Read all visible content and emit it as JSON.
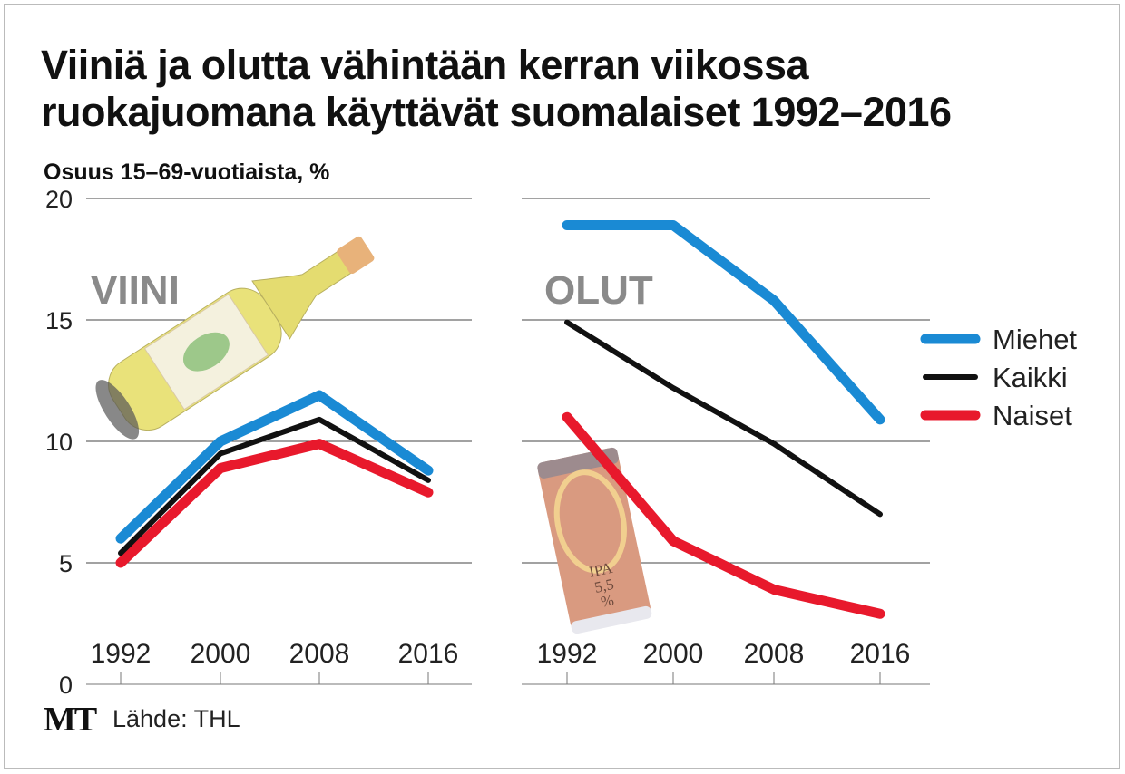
{
  "title_line1": "Viiniä ja olutta vähintään kerran viikossa",
  "title_line2": "ruokajuomana käyttävät suomalaiset 1992–2016",
  "subtitle": "Osuus 15–69-vuotiaista, %",
  "source": "Lähde: THL",
  "logo": "MT",
  "colors": {
    "Miehet": "#1a8ad4",
    "Kaikki": "#111111",
    "Naiset": "#e8192c"
  },
  "chart_data": [
    {
      "type": "line",
      "panel_label": "VIINI",
      "x": [
        "1992",
        "2000",
        "2008",
        "2016"
      ],
      "ylim": [
        0,
        20
      ],
      "yticks": [
        "0",
        "5",
        "10",
        "15",
        "20"
      ],
      "grid": true,
      "series": [
        {
          "name": "Miehet",
          "values": [
            6.0,
            10.0,
            11.9,
            8.8
          ]
        },
        {
          "name": "Kaikki",
          "values": [
            5.4,
            9.5,
            10.9,
            8.4
          ]
        },
        {
          "name": "Naiset",
          "values": [
            5.0,
            8.9,
            9.9,
            7.9
          ]
        }
      ]
    },
    {
      "type": "line",
      "panel_label": "OLUT",
      "x": [
        "1992",
        "2000",
        "2008",
        "2016"
      ],
      "ylim": [
        0,
        20
      ],
      "grid": true,
      "legend": "right",
      "series": [
        {
          "name": "Miehet",
          "values": [
            18.9,
            18.9,
            15.8,
            10.9
          ]
        },
        {
          "name": "Kaikki",
          "values": [
            14.9,
            12.2,
            9.9,
            7.0
          ]
        },
        {
          "name": "Naiset",
          "values": [
            11.0,
            5.9,
            3.9,
            2.9
          ]
        }
      ]
    }
  ],
  "can_label": {
    "line1": "IPA",
    "line2": "5,5",
    "line3": "%"
  }
}
